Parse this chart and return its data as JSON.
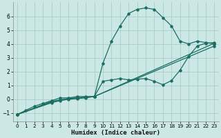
{
  "xlabel": "Humidex (Indice chaleur)",
  "bg_color": "#cce8e4",
  "grid_color": "#aaccca",
  "line_color": "#1a6e64",
  "xlim": [
    -0.5,
    23.5
  ],
  "ylim": [
    -1.6,
    7.0
  ],
  "yticks": [
    -1,
    0,
    1,
    2,
    3,
    4,
    5,
    6
  ],
  "xticks": [
    0,
    1,
    2,
    3,
    4,
    5,
    6,
    7,
    8,
    9,
    10,
    11,
    12,
    13,
    14,
    15,
    16,
    17,
    18,
    19,
    20,
    21,
    22,
    23
  ],
  "series1_x": [
    0,
    1,
    2,
    3,
    4,
    5,
    6,
    7,
    8,
    9,
    10,
    11,
    12,
    13,
    14,
    15,
    16,
    17,
    18,
    19,
    20,
    21,
    22,
    23
  ],
  "series1_y": [
    -1.1,
    -0.8,
    -0.5,
    -0.3,
    -0.1,
    0.1,
    0.1,
    0.2,
    0.2,
    0.2,
    2.6,
    4.2,
    5.3,
    6.2,
    6.5,
    6.6,
    6.5,
    5.9,
    5.3,
    4.2,
    4.0,
    4.2,
    4.1,
    4.0
  ],
  "series2_x": [
    0,
    4,
    5,
    6,
    7,
    8,
    9,
    10,
    11,
    12,
    13,
    14,
    15,
    16,
    17,
    18,
    19,
    20,
    21,
    22,
    23
  ],
  "series2_y": [
    -1.1,
    -0.15,
    -0.05,
    0.05,
    0.1,
    0.15,
    0.2,
    1.3,
    1.4,
    1.5,
    1.4,
    1.45,
    1.5,
    1.3,
    1.05,
    1.35,
    2.1,
    3.1,
    3.85,
    4.05,
    4.1
  ],
  "series3_x": [
    0,
    4,
    5,
    6,
    7,
    8,
    9,
    23
  ],
  "series3_y": [
    -1.1,
    -0.2,
    -0.05,
    0.05,
    0.1,
    0.15,
    0.2,
    4.05
  ],
  "series4_x": [
    0,
    4,
    5,
    6,
    7,
    8,
    9,
    23
  ],
  "series4_y": [
    -1.1,
    -0.25,
    -0.1,
    0.0,
    0.05,
    0.1,
    0.2,
    3.85
  ]
}
